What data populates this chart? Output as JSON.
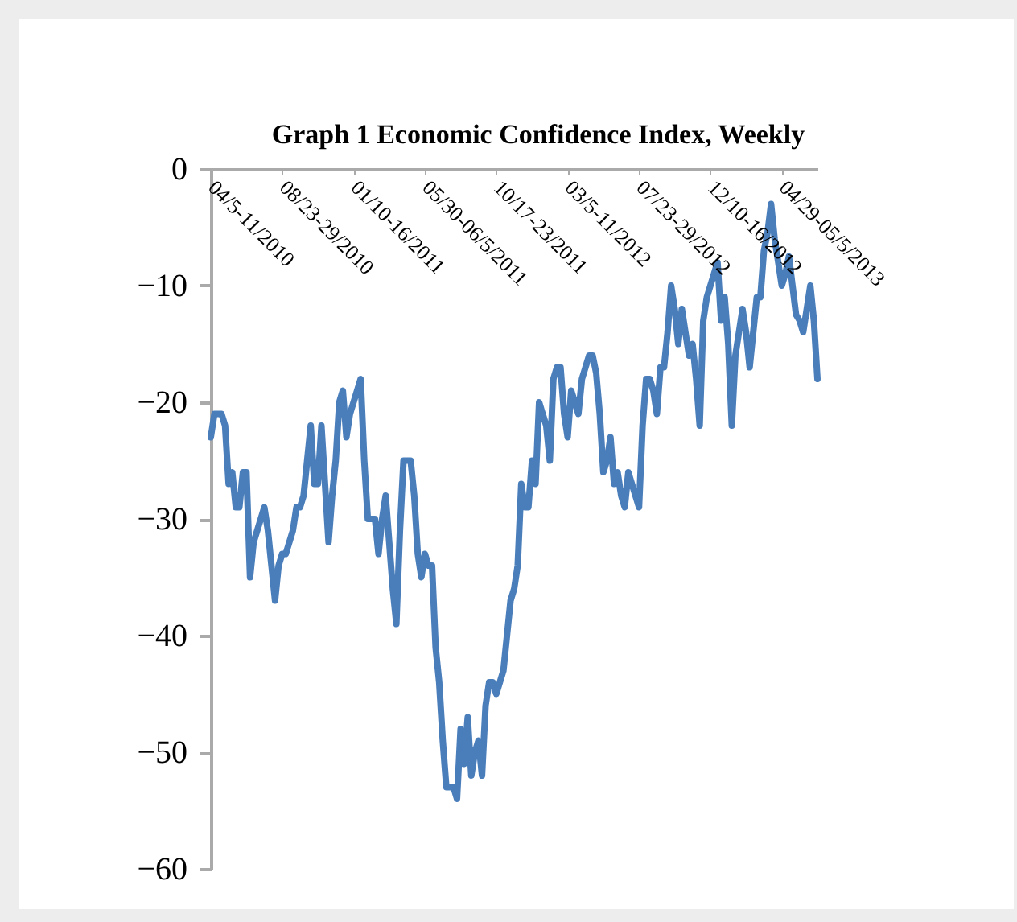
{
  "chart_data": {
    "type": "line",
    "title": "Graph 1  Economic Confidence Index, Weekly",
    "categories": [
      "04/5-11/2010",
      null,
      null,
      null,
      null,
      null,
      null,
      null,
      null,
      null,
      null,
      null,
      null,
      null,
      null,
      null,
      null,
      null,
      null,
      null,
      "08/23-29/2010",
      null,
      null,
      null,
      null,
      null,
      null,
      null,
      null,
      null,
      null,
      null,
      null,
      null,
      null,
      null,
      null,
      null,
      null,
      null,
      "01/10-16/2011",
      null,
      null,
      null,
      null,
      null,
      null,
      null,
      null,
      null,
      null,
      null,
      null,
      null,
      null,
      null,
      null,
      null,
      null,
      null,
      "05/30-06/5/2011",
      null,
      null,
      null,
      null,
      null,
      null,
      null,
      null,
      null,
      null,
      null,
      null,
      null,
      null,
      null,
      null,
      null,
      null,
      null,
      "10/17-23/2011",
      null,
      null,
      null,
      null,
      null,
      null,
      null,
      null,
      null,
      null,
      null,
      null,
      null,
      null,
      null,
      null,
      null,
      null,
      null,
      "03/5-11/2012",
      null,
      null,
      null,
      null,
      null,
      null,
      null,
      null,
      null,
      null,
      null,
      null,
      null,
      null,
      null,
      null,
      null,
      null,
      null,
      "07/23-29/2012",
      null,
      null,
      null,
      null,
      null,
      null,
      null,
      null,
      null,
      null,
      null,
      null,
      null,
      null,
      null,
      null,
      null,
      null,
      null,
      "12/10-16/2012",
      null,
      null,
      null,
      null,
      null,
      null,
      null,
      null,
      null,
      null,
      null,
      null,
      null,
      null,
      null,
      null,
      null,
      null,
      null,
      "04/29-05/5/2013",
      null,
      null,
      null,
      null,
      null,
      null,
      null,
      null,
      null,
      null
    ],
    "values": [
      -23,
      -21,
      -21,
      -21,
      -22,
      -27,
      -26,
      -29,
      -29,
      -26,
      -26,
      -35,
      -32,
      -31,
      -30,
      -29,
      -31,
      -34,
      -37,
      -34,
      -33,
      -33,
      -32,
      -31,
      -29,
      -29,
      -28,
      -25,
      -22,
      -27,
      -27,
      -22,
      -27,
      -32,
      -28,
      -25,
      -20,
      -19,
      -23,
      -21,
      -20,
      -19,
      -18,
      -25,
      -30,
      -30,
      -30,
      -33,
      -30,
      -28,
      -32,
      -36,
      -39,
      -31,
      -25,
      -25,
      -25,
      -28,
      -33,
      -35,
      -33,
      -34,
      -34,
      -41,
      -44,
      -49,
      -53,
      -53,
      -53,
      -54,
      -48,
      -51,
      -47,
      -52,
      -50,
      -49,
      -52,
      -46,
      -44,
      -44,
      -45,
      -44,
      -43,
      -40,
      -37,
      -36,
      -34,
      -27,
      -29,
      -29,
      -25,
      -27,
      -20,
      -21,
      -22,
      -25,
      -18,
      -17,
      -17,
      -21,
      -23,
      -19,
      -20,
      -21,
      -18,
      -17,
      -16,
      -16,
      -17.5,
      -21,
      -26,
      -25,
      -23,
      -27,
      -26,
      -28,
      -29,
      -26,
      -27,
      -28,
      -29,
      -22,
      -18,
      -18,
      -19,
      -21,
      -17,
      -17,
      -14,
      -10,
      -12,
      -15,
      -12,
      -14,
      -16,
      -15,
      -18,
      -22,
      -13,
      -11,
      -10,
      -9,
      -8,
      -13,
      -11,
      -15,
      -22,
      -16,
      -14,
      -12,
      -14,
      -17,
      -14,
      -11,
      -11,
      -7,
      -5.5,
      -3,
      -6,
      -8,
      -10,
      -9,
      -7.5,
      -10,
      -12.5,
      -13,
      -14,
      -12,
      -10,
      -13,
      -18
    ],
    "color": "#4a7ebb",
    "ylim": [
      -60,
      0
    ],
    "yticks": [
      -60,
      -50,
      -40,
      -30,
      -20,
      -10,
      0
    ]
  }
}
